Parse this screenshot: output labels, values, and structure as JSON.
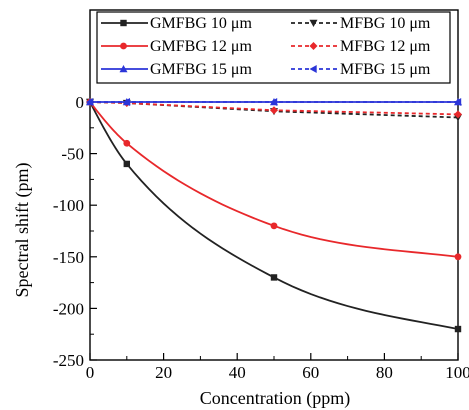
{
  "chart_data": {
    "type": "line",
    "xlabel": "Concentration (ppm)",
    "ylabel": "Spectral shift (pm)",
    "xlim": [
      0,
      100
    ],
    "ylim": [
      -250,
      0
    ],
    "xticks": [
      0,
      20,
      40,
      60,
      80,
      100
    ],
    "yticks": [
      0,
      -50,
      -100,
      -150,
      -200,
      -250
    ],
    "legend_position": "top",
    "series": [
      {
        "name": "GMFBG 10 μm",
        "color": "#222222",
        "dash": "solid",
        "marker": "square",
        "x": [
          0,
          10,
          50,
          100
        ],
        "values": [
          0,
          -60,
          -170,
          -220
        ]
      },
      {
        "name": "MFBG 10 μm",
        "color": "#222222",
        "dash": "dashed",
        "marker": "triangle-down",
        "x": [
          0,
          10,
          50,
          100
        ],
        "values": [
          0,
          -1,
          -9,
          -15
        ]
      },
      {
        "name": "GMFBG 12 μm",
        "color": "#e8282b",
        "dash": "solid",
        "marker": "circle",
        "x": [
          0,
          10,
          50,
          100
        ],
        "values": [
          0,
          -40,
          -120,
          -150
        ]
      },
      {
        "name": "MFBG 12 μm",
        "color": "#e8282b",
        "dash": "dashed",
        "marker": "diamond",
        "x": [
          0,
          10,
          50,
          100
        ],
        "values": [
          0,
          -1,
          -8,
          -12
        ]
      },
      {
        "name": "GMFBG 15 μm",
        "color": "#2b35d8",
        "dash": "solid",
        "marker": "triangle-up",
        "x": [
          0,
          10,
          50,
          100
        ],
        "values": [
          0,
          0,
          0,
          0
        ]
      },
      {
        "name": "MFBG 15 μm",
        "color": "#2b35d8",
        "dash": "dashed",
        "marker": "triangle-left",
        "x": [
          0,
          10,
          50,
          100
        ],
        "values": [
          0,
          0,
          0,
          0
        ]
      }
    ]
  }
}
